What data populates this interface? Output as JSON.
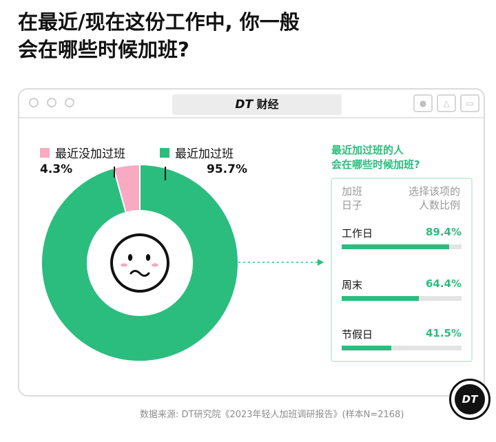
{
  "headline": {
    "line1": "在最近/现在这份工作中, 你一般",
    "line2": "会在哪些时候加班?"
  },
  "window": {
    "brand": "DT",
    "title_suffix": " 财经"
  },
  "colors": {
    "green": "#2bbd7e",
    "pink": "#f7aac1",
    "track": "#e4e4e4"
  },
  "chart_data": [
    {
      "type": "pie",
      "style": "donut",
      "labels": [
        "最近没加过班",
        "最近加过班"
      ],
      "values": [
        4.3,
        95.7
      ],
      "value_labels": [
        "4.3%",
        "95.7%"
      ],
      "colors": [
        "#f7aac1",
        "#2bbd7e"
      ],
      "legend_placement": "top",
      "center_icon": "worried-face-icon"
    },
    {
      "type": "bar",
      "orientation": "horizontal",
      "title_line1": "最近加过班的人",
      "title_line2": "会在哪些时候加班?",
      "header_left_line1": "加班",
      "header_left_line2": "日子",
      "header_right_line1": "选择该项的",
      "header_right_line2": "人数比例",
      "categories": [
        "工作日",
        "周末",
        "节假日"
      ],
      "values": [
        89.4,
        64.4,
        41.5
      ],
      "value_labels": [
        "89.4%",
        "64.4%",
        "41.5%"
      ],
      "xlim": [
        0,
        100
      ]
    }
  ],
  "source": "数据来源: DT研究院《2023年轻人加班调研报告》(样本N=2168)",
  "logo": "DT"
}
